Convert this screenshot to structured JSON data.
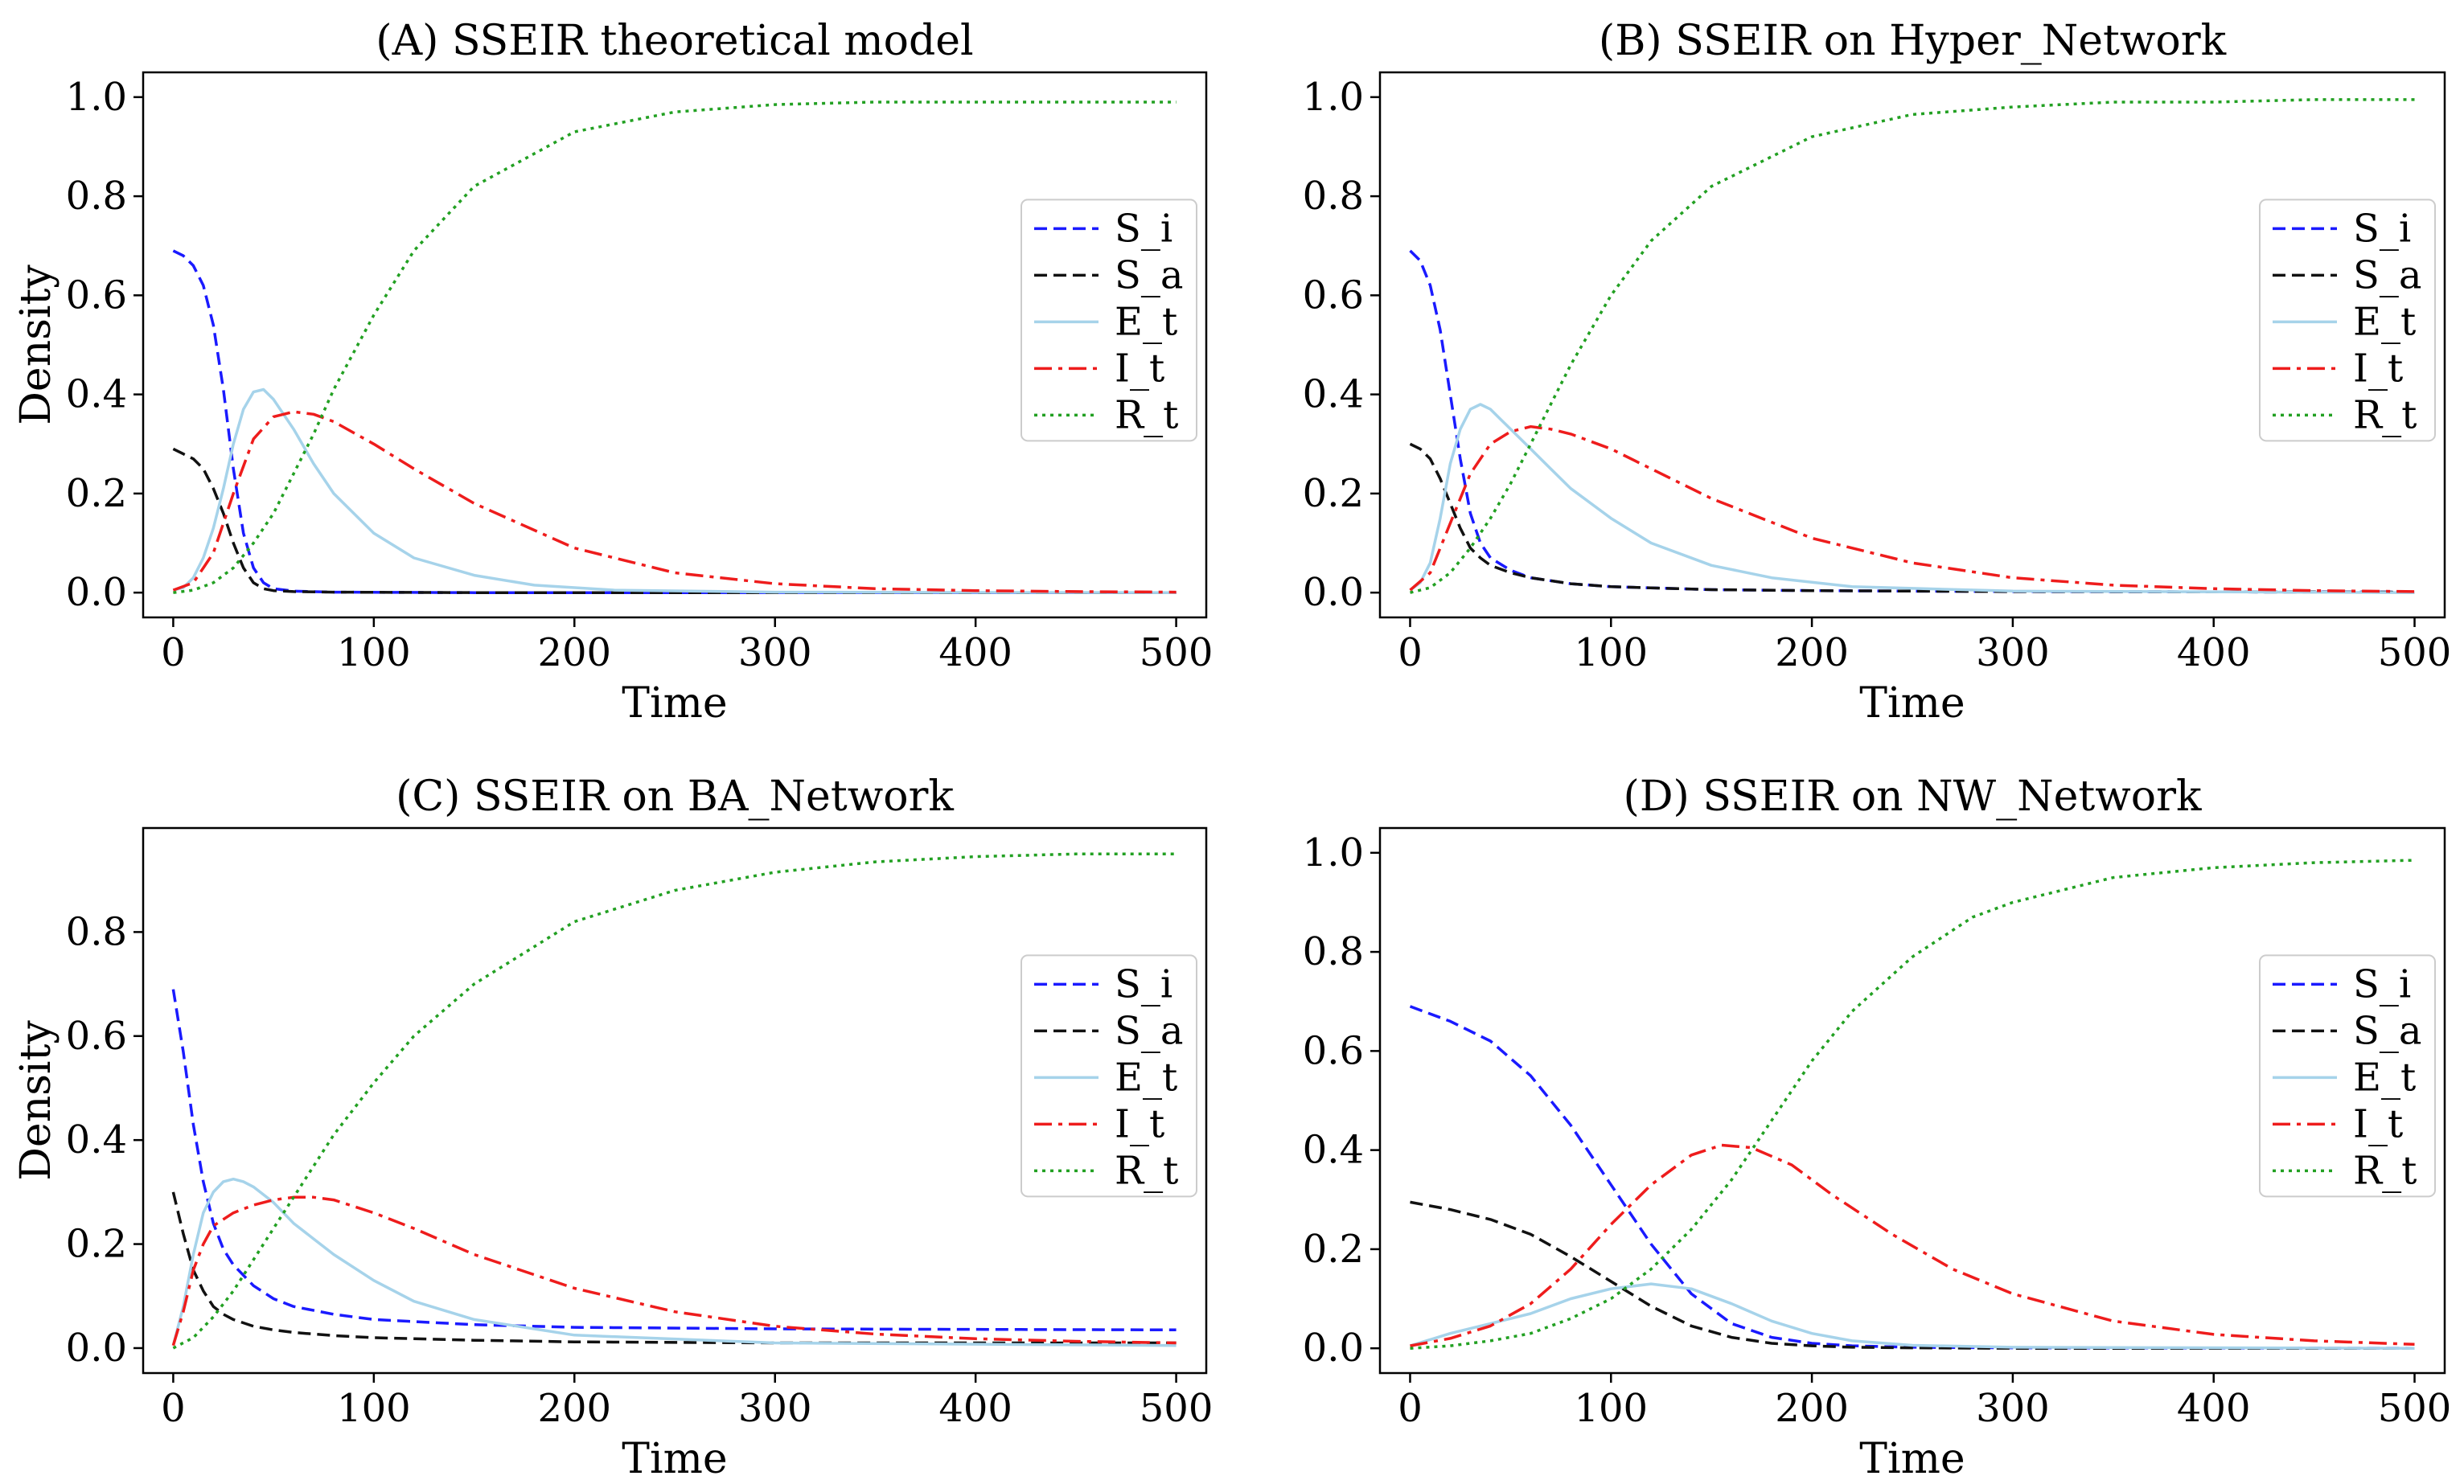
{
  "figure": {
    "legend_entries": [
      "S_i",
      "S_a",
      "E_t",
      "I_t",
      "R_t"
    ],
    "colors": {
      "S_i": "#1a1aff",
      "S_a": "#111111",
      "E_t": "#a6d3ea",
      "I_t": "#ee1c1c",
      "R_t": "#22a022"
    }
  },
  "chart_data": [
    {
      "type": "line",
      "title": "(A) SSEIR theoretical model",
      "xlabel": "Time",
      "ylabel": "Density",
      "xlim": [
        -15,
        515
      ],
      "ylim": [
        -0.05,
        1.05
      ],
      "xticks": [
        0,
        100,
        200,
        300,
        400,
        500
      ],
      "yticks": [
        0.0,
        0.2,
        0.4,
        0.6,
        0.8,
        1.0
      ],
      "ytick_labels": [
        "0.0",
        "0.2",
        "0.4",
        "0.6",
        "0.8",
        "1.0"
      ],
      "legend": "center-right",
      "series": [
        {
          "name": "S_i",
          "style": "dashed",
          "x": [
            0,
            5,
            10,
            15,
            20,
            25,
            30,
            35,
            40,
            45,
            50,
            60,
            80,
            150,
            300,
            500
          ],
          "y": [
            0.69,
            0.68,
            0.66,
            0.62,
            0.54,
            0.41,
            0.25,
            0.12,
            0.05,
            0.02,
            0.008,
            0.003,
            0.001,
            0.0,
            0.0,
            0.0
          ]
        },
        {
          "name": "S_a",
          "style": "dashed",
          "x": [
            0,
            5,
            10,
            15,
            20,
            25,
            30,
            35,
            40,
            45,
            50,
            60,
            80,
            150,
            300,
            500
          ],
          "y": [
            0.29,
            0.28,
            0.27,
            0.25,
            0.21,
            0.16,
            0.1,
            0.05,
            0.02,
            0.008,
            0.004,
            0.002,
            0.001,
            0.0,
            0.0,
            0.0
          ]
        },
        {
          "name": "E_t",
          "style": "solid",
          "x": [
            0,
            5,
            10,
            15,
            20,
            25,
            30,
            35,
            40,
            45,
            50,
            60,
            70,
            80,
            100,
            120,
            150,
            180,
            220,
            300,
            500
          ],
          "y": [
            0.005,
            0.01,
            0.03,
            0.07,
            0.13,
            0.21,
            0.3,
            0.37,
            0.405,
            0.41,
            0.39,
            0.33,
            0.26,
            0.2,
            0.12,
            0.07,
            0.035,
            0.015,
            0.005,
            0.001,
            0.0
          ]
        },
        {
          "name": "I_t",
          "style": "dashdot",
          "x": [
            0,
            10,
            20,
            30,
            40,
            50,
            60,
            70,
            80,
            100,
            120,
            150,
            200,
            250,
            300,
            350,
            400,
            450,
            500
          ],
          "y": [
            0.005,
            0.02,
            0.08,
            0.2,
            0.31,
            0.355,
            0.365,
            0.36,
            0.345,
            0.3,
            0.25,
            0.18,
            0.09,
            0.04,
            0.018,
            0.008,
            0.004,
            0.002,
            0.001
          ]
        },
        {
          "name": "R_t",
          "style": "dotted",
          "x": [
            0,
            10,
            20,
            30,
            40,
            50,
            60,
            70,
            80,
            100,
            120,
            150,
            200,
            250,
            300,
            350,
            400,
            450,
            500
          ],
          "y": [
            0.0,
            0.005,
            0.02,
            0.05,
            0.1,
            0.16,
            0.24,
            0.32,
            0.41,
            0.56,
            0.69,
            0.82,
            0.93,
            0.97,
            0.985,
            0.99,
            0.99,
            0.99,
            0.99
          ]
        }
      ]
    },
    {
      "type": "line",
      "title": "(B) SSEIR on Hyper_Network",
      "xlabel": "Time",
      "ylabel": "",
      "xlim": [
        -15,
        515
      ],
      "ylim": [
        -0.05,
        1.05
      ],
      "xticks": [
        0,
        100,
        200,
        300,
        400,
        500
      ],
      "yticks": [
        0.0,
        0.2,
        0.4,
        0.6,
        0.8,
        1.0
      ],
      "ytick_labels": [
        "0.0",
        "0.2",
        "0.4",
        "0.6",
        "0.8",
        "1.0"
      ],
      "legend": "center-right",
      "series": [
        {
          "name": "S_i",
          "style": "dashed",
          "x": [
            0,
            5,
            10,
            15,
            20,
            25,
            30,
            35,
            40,
            50,
            60,
            80,
            100,
            150,
            200,
            300,
            500
          ],
          "y": [
            0.69,
            0.67,
            0.62,
            0.53,
            0.4,
            0.27,
            0.16,
            0.1,
            0.07,
            0.045,
            0.03,
            0.018,
            0.012,
            0.006,
            0.004,
            0.002,
            0.001
          ]
        },
        {
          "name": "S_a",
          "style": "dashed",
          "x": [
            0,
            5,
            10,
            15,
            20,
            25,
            30,
            35,
            40,
            50,
            60,
            80,
            100,
            150,
            200,
            300,
            500
          ],
          "y": [
            0.3,
            0.29,
            0.27,
            0.23,
            0.18,
            0.13,
            0.09,
            0.07,
            0.055,
            0.04,
            0.03,
            0.018,
            0.012,
            0.006,
            0.004,
            0.002,
            0.001
          ]
        },
        {
          "name": "E_t",
          "style": "solid",
          "x": [
            0,
            5,
            10,
            15,
            20,
            25,
            30,
            35,
            40,
            45,
            50,
            60,
            70,
            80,
            100,
            120,
            150,
            180,
            220,
            300,
            500
          ],
          "y": [
            0.005,
            0.02,
            0.06,
            0.15,
            0.26,
            0.33,
            0.37,
            0.38,
            0.37,
            0.35,
            0.33,
            0.29,
            0.25,
            0.21,
            0.15,
            0.1,
            0.055,
            0.03,
            0.012,
            0.003,
            0.0
          ]
        },
        {
          "name": "I_t",
          "style": "dashdot",
          "x": [
            0,
            10,
            20,
            30,
            40,
            50,
            60,
            70,
            80,
            100,
            120,
            150,
            200,
            250,
            300,
            350,
            400,
            450,
            500
          ],
          "y": [
            0.005,
            0.04,
            0.14,
            0.24,
            0.3,
            0.325,
            0.335,
            0.33,
            0.32,
            0.29,
            0.25,
            0.19,
            0.11,
            0.06,
            0.03,
            0.015,
            0.008,
            0.004,
            0.002
          ]
        },
        {
          "name": "R_t",
          "style": "dotted",
          "x": [
            0,
            10,
            20,
            30,
            40,
            50,
            60,
            70,
            80,
            100,
            120,
            150,
            200,
            250,
            300,
            350,
            400,
            450,
            500
          ],
          "y": [
            0.0,
            0.01,
            0.04,
            0.09,
            0.15,
            0.22,
            0.3,
            0.38,
            0.46,
            0.6,
            0.71,
            0.82,
            0.92,
            0.965,
            0.98,
            0.99,
            0.99,
            0.995,
            0.995
          ]
        }
      ]
    },
    {
      "type": "line",
      "title": "(C) SSEIR on BA_Network",
      "xlabel": "Time",
      "ylabel": "Density",
      "xlim": [
        -15,
        515
      ],
      "ylim": [
        -0.048,
        1.0
      ],
      "xticks": [
        0,
        100,
        200,
        300,
        400,
        500
      ],
      "yticks": [
        0.0,
        0.2,
        0.4,
        0.6,
        0.8
      ],
      "ytick_labels": [
        "0.0",
        "0.2",
        "0.4",
        "0.6",
        "0.8"
      ],
      "legend": "center-right",
      "series": [
        {
          "name": "S_i",
          "style": "dashed",
          "x": [
            0,
            5,
            10,
            15,
            20,
            25,
            30,
            40,
            50,
            60,
            80,
            100,
            150,
            200,
            300,
            500
          ],
          "y": [
            0.69,
            0.57,
            0.43,
            0.32,
            0.24,
            0.19,
            0.16,
            0.12,
            0.095,
            0.08,
            0.065,
            0.055,
            0.045,
            0.04,
            0.037,
            0.035
          ]
        },
        {
          "name": "S_a",
          "style": "dashed",
          "x": [
            0,
            5,
            10,
            15,
            20,
            25,
            30,
            40,
            50,
            60,
            80,
            100,
            150,
            200,
            300,
            500
          ],
          "y": [
            0.3,
            0.22,
            0.15,
            0.11,
            0.08,
            0.065,
            0.055,
            0.042,
            0.035,
            0.03,
            0.024,
            0.02,
            0.015,
            0.012,
            0.01,
            0.01
          ]
        },
        {
          "name": "E_t",
          "style": "solid",
          "x": [
            0,
            5,
            10,
            15,
            20,
            25,
            30,
            35,
            40,
            50,
            60,
            70,
            80,
            100,
            120,
            150,
            200,
            300,
            500
          ],
          "y": [
            0.005,
            0.08,
            0.18,
            0.26,
            0.3,
            0.32,
            0.325,
            0.32,
            0.31,
            0.28,
            0.24,
            0.21,
            0.18,
            0.13,
            0.09,
            0.055,
            0.025,
            0.01,
            0.005
          ]
        },
        {
          "name": "I_t",
          "style": "dashdot",
          "x": [
            0,
            5,
            10,
            15,
            20,
            30,
            40,
            50,
            60,
            70,
            80,
            100,
            120,
            150,
            200,
            250,
            300,
            350,
            400,
            450,
            500
          ],
          "y": [
            0.005,
            0.07,
            0.15,
            0.2,
            0.235,
            0.26,
            0.275,
            0.285,
            0.29,
            0.29,
            0.285,
            0.26,
            0.23,
            0.18,
            0.115,
            0.07,
            0.042,
            0.027,
            0.018,
            0.013,
            0.01
          ]
        },
        {
          "name": "R_t",
          "style": "dotted",
          "x": [
            0,
            10,
            20,
            30,
            40,
            50,
            60,
            70,
            80,
            100,
            120,
            150,
            200,
            250,
            300,
            350,
            400,
            450,
            500
          ],
          "y": [
            0.0,
            0.02,
            0.06,
            0.11,
            0.17,
            0.23,
            0.29,
            0.35,
            0.41,
            0.51,
            0.6,
            0.7,
            0.82,
            0.88,
            0.915,
            0.935,
            0.945,
            0.95,
            0.95
          ]
        }
      ]
    },
    {
      "type": "line",
      "title": "(D) SSEIR on NW_Network",
      "xlabel": "Time",
      "ylabel": "",
      "xlim": [
        -15,
        515
      ],
      "ylim": [
        -0.05,
        1.05
      ],
      "xticks": [
        0,
        100,
        200,
        300,
        400,
        500
      ],
      "yticks": [
        0.0,
        0.2,
        0.4,
        0.6,
        0.8,
        1.0
      ],
      "ytick_labels": [
        "0.0",
        "0.2",
        "0.4",
        "0.6",
        "0.8",
        "1.0"
      ],
      "legend": "center-right",
      "series": [
        {
          "name": "S_i",
          "style": "dashed",
          "x": [
            0,
            20,
            40,
            60,
            80,
            100,
            120,
            140,
            160,
            180,
            200,
            220,
            250,
            300,
            500
          ],
          "y": [
            0.69,
            0.66,
            0.62,
            0.55,
            0.45,
            0.33,
            0.21,
            0.11,
            0.05,
            0.022,
            0.01,
            0.005,
            0.002,
            0.001,
            0.0
          ]
        },
        {
          "name": "S_a",
          "style": "dashed",
          "x": [
            0,
            20,
            40,
            60,
            80,
            100,
            120,
            140,
            160,
            180,
            200,
            220,
            250,
            300,
            500
          ],
          "y": [
            0.295,
            0.28,
            0.26,
            0.23,
            0.185,
            0.135,
            0.085,
            0.045,
            0.022,
            0.01,
            0.005,
            0.002,
            0.001,
            0.0,
            0.0
          ]
        },
        {
          "name": "E_t",
          "style": "solid",
          "x": [
            0,
            20,
            40,
            60,
            80,
            100,
            120,
            140,
            160,
            180,
            200,
            220,
            250,
            300,
            500
          ],
          "y": [
            0.005,
            0.03,
            0.05,
            0.07,
            0.1,
            0.12,
            0.13,
            0.12,
            0.09,
            0.055,
            0.03,
            0.015,
            0.006,
            0.002,
            0.0
          ]
        },
        {
          "name": "I_t",
          "style": "dashdot",
          "x": [
            0,
            20,
            40,
            60,
            80,
            100,
            120,
            140,
            155,
            170,
            190,
            210,
            240,
            270,
            300,
            350,
            400,
            450,
            500
          ],
          "y": [
            0.005,
            0.02,
            0.045,
            0.09,
            0.16,
            0.25,
            0.33,
            0.39,
            0.41,
            0.405,
            0.37,
            0.31,
            0.23,
            0.16,
            0.11,
            0.055,
            0.028,
            0.015,
            0.008
          ]
        },
        {
          "name": "R_t",
          "style": "dotted",
          "x": [
            0,
            20,
            40,
            60,
            80,
            100,
            120,
            140,
            160,
            180,
            200,
            220,
            250,
            280,
            300,
            350,
            400,
            450,
            500
          ],
          "y": [
            0.0,
            0.005,
            0.015,
            0.03,
            0.06,
            0.1,
            0.16,
            0.24,
            0.34,
            0.46,
            0.58,
            0.68,
            0.79,
            0.87,
            0.9,
            0.95,
            0.97,
            0.98,
            0.985
          ]
        }
      ]
    }
  ]
}
